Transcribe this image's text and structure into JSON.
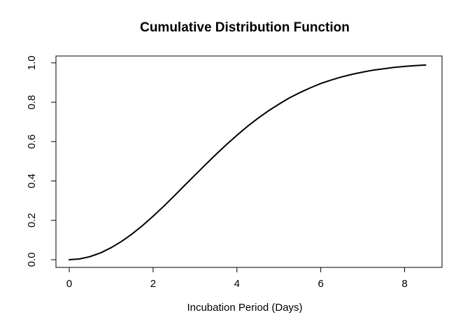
{
  "chart_data": {
    "type": "line",
    "title": "Cumulative Distribution Function",
    "xlabel": "Incubation Period (Days)",
    "ylabel": "",
    "xlim": [
      0,
      8.5
    ],
    "ylim": [
      0,
      1
    ],
    "x_ticks": [
      0,
      2,
      4,
      6,
      8
    ],
    "x_tick_labels": [
      "0",
      "2",
      "4",
      "6",
      "8"
    ],
    "y_ticks": [
      0.0,
      0.2,
      0.4,
      0.6,
      0.8,
      1.0
    ],
    "y_tick_labels": [
      "0.0",
      "0.2",
      "0.4",
      "0.6",
      "0.8",
      "1.0"
    ],
    "grid": false,
    "legend": false,
    "series": [
      {
        "name": "cdf-curve",
        "color": "#000000",
        "x": [
          0,
          0.25,
          0.5,
          0.75,
          1,
          1.25,
          1.5,
          1.75,
          2,
          2.25,
          2.5,
          2.75,
          3,
          3.25,
          3.5,
          3.75,
          4,
          4.25,
          4.5,
          4.75,
          5,
          5.25,
          5.5,
          5.75,
          6,
          6.25,
          6.5,
          6.75,
          7,
          7.25,
          7.5,
          7.75,
          8,
          8.25,
          8.5
        ],
        "y": [
          0,
          0.004,
          0.016,
          0.035,
          0.061,
          0.093,
          0.131,
          0.174,
          0.221,
          0.271,
          0.323,
          0.377,
          0.43,
          0.483,
          0.535,
          0.585,
          0.632,
          0.677,
          0.718,
          0.756,
          0.79,
          0.822,
          0.849,
          0.873,
          0.895,
          0.913,
          0.929,
          0.942,
          0.953,
          0.963,
          0.97,
          0.977,
          0.982,
          0.986,
          0.989
        ]
      }
    ]
  },
  "colors": {
    "background": "#ffffff",
    "foreground": "#000000",
    "curve": "#000000"
  }
}
